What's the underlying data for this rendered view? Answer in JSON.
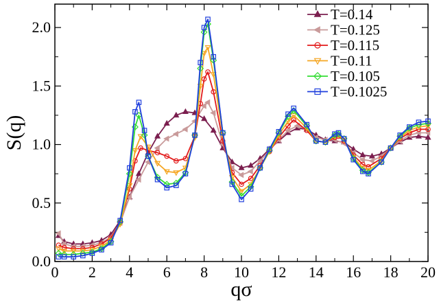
{
  "chart_data": {
    "type": "line",
    "title": "",
    "xlabel": "qσ",
    "ylabel": "S(q)",
    "xlim": [
      0,
      20
    ],
    "ylim": [
      0,
      2.2
    ],
    "xticks": [
      0,
      2,
      4,
      6,
      8,
      10,
      12,
      14,
      16,
      18,
      20
    ],
    "xtick_labels": [
      "0",
      "2",
      "4",
      "6",
      "8",
      "10",
      "12",
      "14",
      "16",
      "18",
      "20"
    ],
    "yticks": [
      0,
      0.5,
      1.0,
      1.5,
      2.0
    ],
    "ytick_labels": [
      "0.0",
      "0.5",
      "1.0",
      "1.5",
      "2.0"
    ],
    "grid": false,
    "legend_position": "top-right",
    "series": [
      {
        "name": "T=0.14",
        "color": "#7b1f4f",
        "marker": "triangle-up",
        "x": [
          0.2,
          0.5,
          1,
          1.5,
          2,
          2.5,
          3,
          3.5,
          4,
          4.5,
          5,
          5.5,
          6,
          6.5,
          7,
          7.5,
          8,
          8.5,
          9,
          9.5,
          10,
          10.5,
          11,
          11.5,
          12,
          12.5,
          13,
          13.5,
          14,
          14.5,
          15,
          15.5,
          16,
          16.5,
          17,
          17.5,
          18,
          18.5,
          19,
          19.5,
          20
        ],
        "y": [
          0.22,
          0.17,
          0.15,
          0.15,
          0.16,
          0.18,
          0.23,
          0.35,
          0.55,
          0.75,
          0.93,
          1.07,
          1.18,
          1.25,
          1.28,
          1.27,
          1.22,
          1.12,
          0.97,
          0.85,
          0.8,
          0.82,
          0.88,
          0.96,
          1.03,
          1.1,
          1.14,
          1.13,
          1.08,
          1.04,
          1.03,
          1.02,
          0.96,
          0.91,
          0.9,
          0.92,
          0.97,
          1.02,
          1.06,
          1.07,
          1.06
        ]
      },
      {
        "name": "T=0.125",
        "color": "#c99a9a",
        "marker": "triangle-left",
        "x": [
          0.2,
          0.5,
          1,
          1.5,
          2,
          2.5,
          3,
          3.5,
          4,
          4.5,
          5,
          5.5,
          6,
          6.5,
          7,
          7.5,
          8,
          8.2,
          8.5,
          9,
          9.5,
          10,
          10.5,
          11,
          11.5,
          12,
          12.5,
          13,
          13.5,
          14,
          14.5,
          15,
          15.5,
          16,
          16.5,
          17,
          17.5,
          18,
          18.5,
          19,
          19.5,
          20
        ],
        "y": [
          0.24,
          0.15,
          0.13,
          0.13,
          0.14,
          0.16,
          0.21,
          0.33,
          0.55,
          0.7,
          0.85,
          0.97,
          1.05,
          1.09,
          1.13,
          1.2,
          1.33,
          1.36,
          1.27,
          1.0,
          0.8,
          0.74,
          0.77,
          0.86,
          0.95,
          1.04,
          1.12,
          1.16,
          1.13,
          1.06,
          1.04,
          1.04,
          1.01,
          0.93,
          0.87,
          0.86,
          0.9,
          0.97,
          1.03,
          1.08,
          1.1,
          1.1
        ]
      },
      {
        "name": "T=0.115",
        "color": "#e21a1a",
        "marker": "circle",
        "x": [
          0.2,
          0.5,
          1,
          1.5,
          2,
          2.5,
          3,
          3.5,
          4,
          4.3,
          4.6,
          5,
          5.5,
          6,
          6.5,
          7,
          7.5,
          7.8,
          8.0,
          8.2,
          8.5,
          9,
          9.5,
          10,
          10.5,
          11,
          11.5,
          12,
          12.5,
          12.8,
          13.5,
          14,
          14.5,
          15,
          15.2,
          15.5,
          16,
          16.5,
          16.8,
          17.5,
          18,
          18.5,
          19,
          19.5,
          20
        ],
        "y": [
          0.14,
          0.12,
          0.11,
          0.11,
          0.12,
          0.15,
          0.2,
          0.33,
          0.62,
          0.86,
          0.97,
          0.95,
          0.93,
          0.9,
          0.86,
          0.88,
          1.07,
          1.35,
          1.56,
          1.62,
          1.45,
          1.03,
          0.76,
          0.66,
          0.71,
          0.82,
          0.94,
          1.06,
          1.16,
          1.21,
          1.12,
          1.03,
          1.02,
          1.06,
          1.07,
          1.03,
          0.91,
          0.83,
          0.81,
          0.88,
          0.97,
          1.05,
          1.1,
          1.13,
          1.13
        ]
      },
      {
        "name": "T=0.11",
        "color": "#f5a623",
        "marker": "triangle-down",
        "x": [
          0.2,
          0.5,
          1,
          1.5,
          2,
          2.5,
          3,
          3.5,
          4,
          4.3,
          4.6,
          5,
          5.5,
          6,
          6.5,
          7,
          7.5,
          7.8,
          8.0,
          8.2,
          8.5,
          9,
          9.5,
          10,
          10.5,
          11,
          11.5,
          12,
          12.5,
          12.8,
          13.5,
          14,
          14.5,
          15,
          15.2,
          15.5,
          16,
          16.5,
          16.8,
          17.5,
          18,
          18.5,
          19,
          19.5,
          20
        ],
        "y": [
          0.11,
          0.09,
          0.09,
          0.09,
          0.1,
          0.13,
          0.18,
          0.32,
          0.65,
          0.95,
          1.07,
          0.98,
          0.84,
          0.77,
          0.76,
          0.8,
          1.06,
          1.5,
          1.78,
          1.83,
          1.6,
          1.08,
          0.72,
          0.6,
          0.66,
          0.8,
          0.94,
          1.08,
          1.2,
          1.25,
          1.14,
          1.03,
          1.02,
          1.07,
          1.08,
          1.04,
          0.89,
          0.8,
          0.78,
          0.86,
          0.97,
          1.06,
          1.12,
          1.15,
          1.16
        ]
      },
      {
        "name": "T=0.105",
        "color": "#33dd33",
        "marker": "diamond",
        "x": [
          0.2,
          0.5,
          1,
          1.5,
          2,
          2.5,
          3,
          3.5,
          4,
          4.3,
          4.5,
          4.8,
          5,
          5.5,
          6,
          6.5,
          7,
          7.5,
          7.8,
          8.0,
          8.2,
          8.5,
          9,
          9.5,
          10,
          10.5,
          11,
          11.5,
          12,
          12.5,
          12.8,
          13.5,
          14,
          14.5,
          15,
          15.2,
          15.5,
          16,
          16.5,
          16.8,
          17.5,
          18,
          18.5,
          19,
          19.5,
          20
        ],
        "y": [
          0.07,
          0.06,
          0.06,
          0.07,
          0.08,
          0.11,
          0.17,
          0.34,
          0.75,
          1.15,
          1.25,
          1.08,
          0.9,
          0.72,
          0.66,
          0.67,
          0.76,
          1.08,
          1.65,
          1.96,
          2.03,
          1.72,
          1.1,
          0.68,
          0.56,
          0.64,
          0.8,
          0.95,
          1.1,
          1.24,
          1.29,
          1.16,
          1.03,
          1.02,
          1.08,
          1.09,
          1.05,
          0.88,
          0.78,
          0.76,
          0.85,
          0.97,
          1.07,
          1.14,
          1.17,
          1.18
        ]
      },
      {
        "name": "T=0.1025",
        "color": "#1f3fdd",
        "marker": "square",
        "x": [
          0.2,
          0.5,
          1,
          1.5,
          2,
          2.5,
          3,
          3.5,
          4,
          4.3,
          4.5,
          4.8,
          5,
          5.5,
          6,
          6.5,
          7,
          7.5,
          7.8,
          8.0,
          8.2,
          8.5,
          9,
          9.5,
          10,
          10.5,
          11,
          11.5,
          12,
          12.5,
          12.8,
          13.5,
          14,
          14.5,
          15,
          15.2,
          15.5,
          16,
          16.5,
          16.8,
          17.5,
          18,
          18.5,
          19,
          19.5,
          20
        ],
        "y": [
          0.04,
          0.04,
          0.04,
          0.05,
          0.07,
          0.1,
          0.16,
          0.35,
          0.8,
          1.28,
          1.36,
          1.12,
          0.9,
          0.7,
          0.63,
          0.65,
          0.75,
          1.08,
          1.7,
          2.0,
          2.07,
          1.75,
          1.1,
          0.66,
          0.53,
          0.62,
          0.8,
          0.96,
          1.11,
          1.26,
          1.31,
          1.17,
          1.03,
          1.02,
          1.09,
          1.1,
          1.05,
          0.87,
          0.77,
          0.75,
          0.85,
          0.97,
          1.08,
          1.15,
          1.19,
          1.2
        ]
      }
    ]
  }
}
